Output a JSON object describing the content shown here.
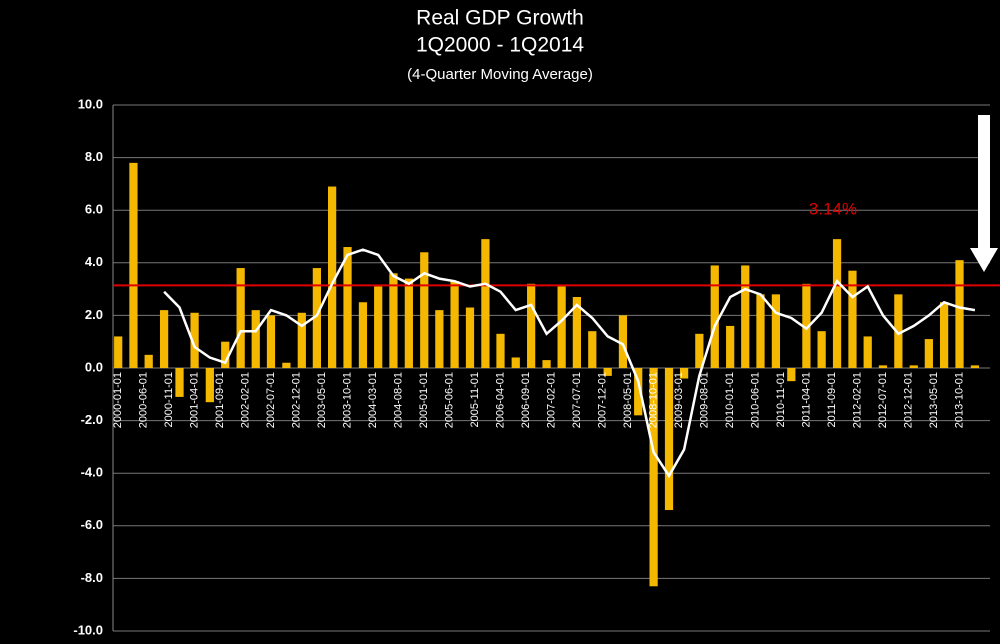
{
  "chart_data": {
    "type": "bar",
    "title": "Real GDP Growth",
    "subtitle": "1Q2000 - 1Q2014",
    "note": "(4-Quarter Moving Average)",
    "x": [
      "2000-01-01",
      "2000-04-01",
      "2000-07-01",
      "2000-10-01",
      "2001-01-01",
      "2001-04-01",
      "2001-07-01",
      "2001-10-01",
      "2002-01-01",
      "2002-04-01",
      "2002-07-01",
      "2002-10-01",
      "2003-01-01",
      "2003-04-01",
      "2003-07-01",
      "2003-10-01",
      "2004-01-01",
      "2004-04-01",
      "2004-07-01",
      "2004-10-01",
      "2005-01-01",
      "2005-04-01",
      "2005-07-01",
      "2005-10-01",
      "2006-01-01",
      "2006-04-01",
      "2006-07-01",
      "2006-10-01",
      "2007-01-01",
      "2007-04-01",
      "2007-07-01",
      "2007-10-01",
      "2008-01-01",
      "2008-04-01",
      "2008-07-01",
      "2008-10-01",
      "2009-01-01",
      "2009-04-01",
      "2009-07-01",
      "2009-10-01",
      "2010-01-01",
      "2010-04-01",
      "2010-07-01",
      "2010-10-01",
      "2011-01-01",
      "2011-04-01",
      "2011-07-01",
      "2011-10-01",
      "2012-01-01",
      "2012-04-01",
      "2012-07-01",
      "2012-10-01",
      "2013-01-01",
      "2013-04-01",
      "2013-07-01",
      "2013-10-01",
      "2014-01-01"
    ],
    "series": [
      {
        "type": "bar",
        "color": "#f5b800",
        "values": [
          1.2,
          7.8,
          0.5,
          2.2,
          -1.1,
          2.1,
          -1.3,
          1.0,
          3.8,
          2.2,
          2.0,
          0.2,
          2.1,
          3.8,
          6.9,
          4.6,
          2.5,
          3.1,
          3.6,
          3.4,
          4.4,
          2.2,
          3.3,
          2.3,
          4.9,
          1.3,
          0.4,
          3.2,
          0.3,
          3.1,
          2.7,
          1.4,
          -0.3,
          2.0,
          -1.8,
          -8.3,
          -5.4,
          -0.4,
          1.3,
          3.9,
          1.6,
          3.9,
          2.8,
          2.8,
          -0.5,
          3.2,
          1.4,
          4.9,
          3.7,
          1.2,
          0.1,
          2.8,
          0.1,
          1.1,
          2.5,
          4.1,
          0.1
        ]
      },
      {
        "type": "line",
        "color": "#ffffff",
        "values": [
          null,
          null,
          null,
          2.9,
          2.3,
          0.8,
          0.4,
          0.2,
          1.4,
          1.4,
          2.2,
          2.0,
          1.6,
          2.0,
          3.2,
          4.3,
          4.5,
          4.3,
          3.5,
          3.2,
          3.6,
          3.4,
          3.3,
          3.1,
          3.2,
          2.9,
          2.2,
          2.4,
          1.3,
          1.8,
          2.4,
          1.9,
          1.2,
          0.9,
          -0.5,
          -3.2,
          -4.1,
          -3.1,
          -0.3,
          1.6,
          2.7,
          3.0,
          2.8,
          2.1,
          1.9,
          1.5,
          2.1,
          3.3,
          2.7,
          3.1,
          2.0,
          1.3,
          1.6,
          2.0,
          2.5,
          2.3,
          2.2
        ]
      }
    ],
    "reference_line": {
      "value": 3.14,
      "label": "3.14%",
      "color": "#e00000"
    },
    "xlim": [
      "1999-12-01",
      "2014-04-01"
    ],
    "xticks": [
      "2000-01-01",
      "2000-06-01",
      "2000-11-01",
      "2001-04-01",
      "2001-09-01",
      "2002-02-01",
      "2002-07-01",
      "2002-12-01",
      "2003-05-01",
      "2003-10-01",
      "2004-03-01",
      "2004-08-01",
      "2005-01-01",
      "2005-06-01",
      "2005-11-01",
      "2006-04-01",
      "2006-09-01",
      "2007-02-01",
      "2007-07-01",
      "2007-12-01",
      "2008-05-01",
      "2008-10-01",
      "2009-03-01",
      "2009-08-01",
      "2010-01-01",
      "2010-06-01",
      "2010-11-01",
      "2011-04-01",
      "2011-09-01",
      "2012-02-01",
      "2012-07-01",
      "2012-12-01",
      "2013-05-01",
      "2013-10-01"
    ],
    "ylim": [
      -10,
      10
    ],
    "yticks": [
      {
        "value": -10,
        "label": "-10.0"
      },
      {
        "value": -8,
        "label": "-8.0"
      },
      {
        "value": -6,
        "label": "-6.0"
      },
      {
        "value": -4,
        "label": "-4.0"
      },
      {
        "value": -2,
        "label": "-2.0"
      },
      {
        "value": 0,
        "label": "0.0"
      },
      {
        "value": 2,
        "label": "2.0"
      },
      {
        "value": 4,
        "label": "4.0"
      },
      {
        "value": 6,
        "label": "6.0"
      },
      {
        "value": 8,
        "label": "8.0"
      },
      {
        "value": 10,
        "label": "10.0"
      }
    ],
    "grid": true
  }
}
